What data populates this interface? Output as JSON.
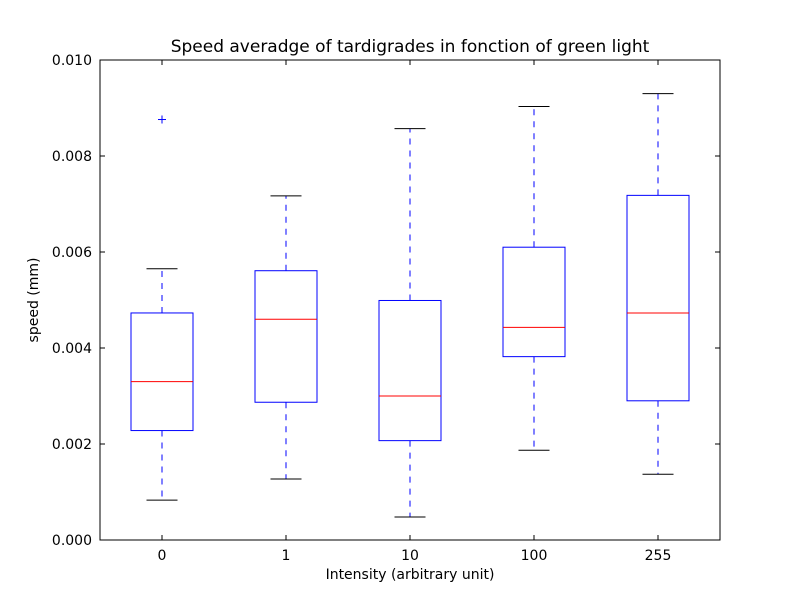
{
  "chart_data": {
    "type": "box",
    "title": "Speed averadge of tardigrades in fonction of green light",
    "xlabel": "Intensity (arbitrary unit)",
    "ylabel": "speed (mm)",
    "ylim": [
      0,
      0.01
    ],
    "yticks": [
      "0.000",
      "0.002",
      "0.004",
      "0.006",
      "0.008",
      "0.010"
    ],
    "ytick_values": [
      0,
      0.002,
      0.004,
      0.006,
      0.008,
      0.01
    ],
    "categories": [
      "0",
      "1",
      "10",
      "100",
      "255"
    ],
    "boxes": [
      {
        "whisker_low": 0.00083,
        "q1": 0.00228,
        "median": 0.0033,
        "q3": 0.00473,
        "whisker_high": 0.00565,
        "outliers": [
          0.00876
        ]
      },
      {
        "whisker_low": 0.00127,
        "q1": 0.00287,
        "median": 0.0046,
        "q3": 0.00561,
        "whisker_high": 0.00717,
        "outliers": []
      },
      {
        "whisker_low": 0.00048,
        "q1": 0.00207,
        "median": 0.003,
        "q3": 0.00499,
        "whisker_high": 0.00857,
        "outliers": []
      },
      {
        "whisker_low": 0.00187,
        "q1": 0.00382,
        "median": 0.00443,
        "q3": 0.0061,
        "whisker_high": 0.00903,
        "outliers": []
      },
      {
        "whisker_low": 0.00137,
        "q1": 0.0029,
        "median": 0.00473,
        "q3": 0.00718,
        "whisker_high": 0.0093,
        "outliers": []
      }
    ],
    "colors": {
      "box": "#0000ff",
      "median": "#ff0000",
      "whisker": "#0000ff",
      "cap": "#000000",
      "flier": "#0000ff"
    },
    "grid": false,
    "legend": "none"
  }
}
